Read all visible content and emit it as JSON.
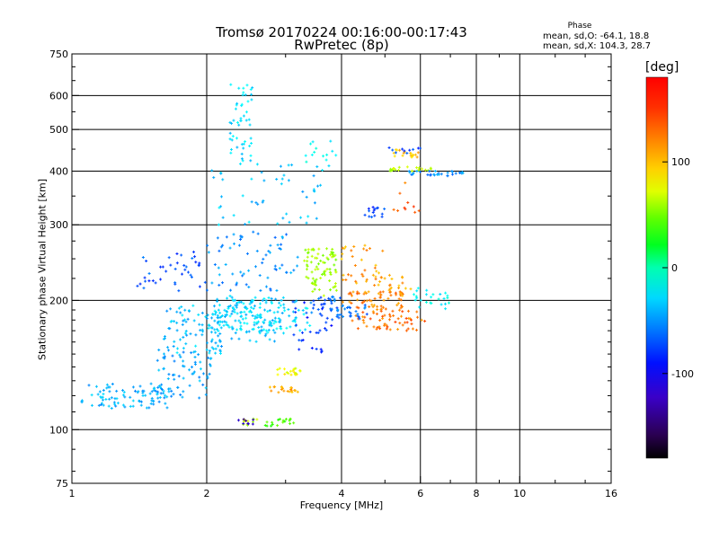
{
  "chart_data": {
    "type": "scatter",
    "title": "Tromsø 20170224 00:16:00-00:17:43",
    "subtitle": "RwPretec (8p)",
    "xlabel": "Frequency [MHz]",
    "ylabel": "Stationary phase Virtual Height [km]",
    "xscale": "log",
    "yscale": "log",
    "xlim": [
      1,
      16
    ],
    "ylim": [
      75,
      750
    ],
    "xticks": [
      1,
      2,
      4,
      6,
      8,
      10,
      16
    ],
    "xtick_labels": [
      "1",
      "2",
      "4",
      "6",
      "8",
      "10",
      "16"
    ],
    "yticks": [
      75,
      100,
      200,
      300,
      400,
      500,
      600,
      750
    ],
    "ytick_labels": [
      "75",
      "100",
      "200",
      "300",
      "400",
      "500",
      "600",
      "750"
    ],
    "x_gridlines": [
      2,
      4,
      6,
      8,
      10
    ],
    "y_gridlines": [
      100,
      200,
      300,
      400,
      500,
      600
    ],
    "grid": true,
    "phase_stats": {
      "title": "Phase",
      "o_line": "mean, sd,O: -64.1, 18.8",
      "x_line": "mean, sd,X: 104.3, 28.7"
    },
    "colorbar": {
      "label": "[deg]",
      "range": [
        -180,
        180
      ],
      "ticks": [
        100,
        0,
        -100
      ],
      "tick_labels": [
        "100",
        "0",
        "-100"
      ],
      "colormap": "rainbow"
    },
    "series": [
      {
        "clusters": [
          {
            "fx": [
              1.05,
              1.65
            ],
            "h": [
              112,
              128
            ],
            "phase": -85,
            "n": 90
          },
          {
            "fx": [
              1.55,
              2.05
            ],
            "h": [
              118,
              155
            ],
            "phase": -88,
            "n": 70
          },
          {
            "fx": [
              1.6,
              2.2
            ],
            "h": [
              150,
              195
            ],
            "phase": -80,
            "n": 90
          },
          {
            "fx": [
              2.05,
              3.0
            ],
            "h": [
              160,
              205
            ],
            "phase": -75,
            "n": 130
          },
          {
            "fx": [
              2.2,
              3.4
            ],
            "h": [
              170,
              200
            ],
            "phase": -70,
            "n": 80
          },
          {
            "fx": [
              2.0,
              3.2
            ],
            "h": [
              210,
              290
            ],
            "phase": -95,
            "n": 70
          },
          {
            "fx": [
              2.0,
              3.6
            ],
            "h": [
              300,
              420
            ],
            "phase": -78,
            "n": 50
          },
          {
            "fx": [
              2.25,
              2.55
            ],
            "h": [
              420,
              640
            ],
            "phase": -70,
            "n": 50
          },
          {
            "fx": [
              1.4,
              2.0
            ],
            "h": [
              210,
              260
            ],
            "phase": -115,
            "n": 40
          },
          {
            "fx": [
              3.1,
              3.8
            ],
            "h": [
              150,
              200
            ],
            "phase": -125,
            "n": 30
          },
          {
            "fx": [
              2.7,
              3.2
            ],
            "h": [
              102,
              106
            ],
            "phase": 40,
            "n": 18
          },
          {
            "fx": [
              2.4,
              2.6
            ],
            "h": [
              102,
              106
            ],
            "phase": 75,
            "n": 10
          },
          {
            "fx": [
              2.35,
              2.55
            ],
            "h": [
              103,
              106
            ],
            "phase": -165,
            "n": 8
          },
          {
            "fx": [
              2.75,
              3.2
            ],
            "h": [
              122,
              126
            ],
            "phase": 130,
            "n": 20
          },
          {
            "fx": [
              2.85,
              3.25
            ],
            "h": [
              134,
              139
            ],
            "phase": 95,
            "n": 20
          },
          {
            "fx": [
              3.3,
              3.9
            ],
            "h": [
              205,
              265
            ],
            "phase": 70,
            "n": 80
          },
          {
            "fx": [
              3.4,
              4.0
            ],
            "h": [
              180,
              205
            ],
            "phase": -110,
            "n": 30
          },
          {
            "fx": [
              4.0,
              5.5
            ],
            "h": [
              190,
              210
            ],
            "phase": 140,
            "n": 60
          },
          {
            "fx": [
              4.2,
              6.2
            ],
            "h": [
              170,
              190
            ],
            "phase": 145,
            "n": 60
          },
          {
            "fx": [
              4.0,
              5.0
            ],
            "h": [
              215,
              270
            ],
            "phase": 130,
            "n": 40
          },
          {
            "fx": [
              5.0,
              5.8
            ],
            "h": [
              205,
              230
            ],
            "phase": 130,
            "n": 20
          },
          {
            "fx": [
              3.9,
              4.6
            ],
            "h": [
              180,
              195
            ],
            "phase": -105,
            "n": 25
          },
          {
            "fx": [
              5.8,
              7.0
            ],
            "h": [
              190,
              215
            ],
            "phase": -60,
            "n": 25
          },
          {
            "fx": [
              5.0,
              6.4
            ],
            "h": [
              400,
              410
            ],
            "phase": 75,
            "n": 20
          },
          {
            "fx": [
              5.5,
              7.5
            ],
            "h": [
              390,
              400
            ],
            "phase": -95,
            "n": 30
          },
          {
            "fx": [
              5.2,
              6.0
            ],
            "h": [
              430,
              450
            ],
            "phase": 120,
            "n": 18
          },
          {
            "fx": [
              5.0,
              6.0
            ],
            "h": [
              440,
              455
            ],
            "phase": -120,
            "n": 10
          },
          {
            "fx": [
              3.3,
              3.9
            ],
            "h": [
              400,
              470
            ],
            "phase": -60,
            "n": 15
          },
          {
            "fx": [
              4.5,
              5.0
            ],
            "h": [
              310,
              330
            ],
            "phase": -120,
            "n": 15
          },
          {
            "fx": [
              5.2,
              6.0
            ],
            "h": [
              320,
              380
            ],
            "phase": 150,
            "n": 10
          }
        ]
      }
    ]
  }
}
